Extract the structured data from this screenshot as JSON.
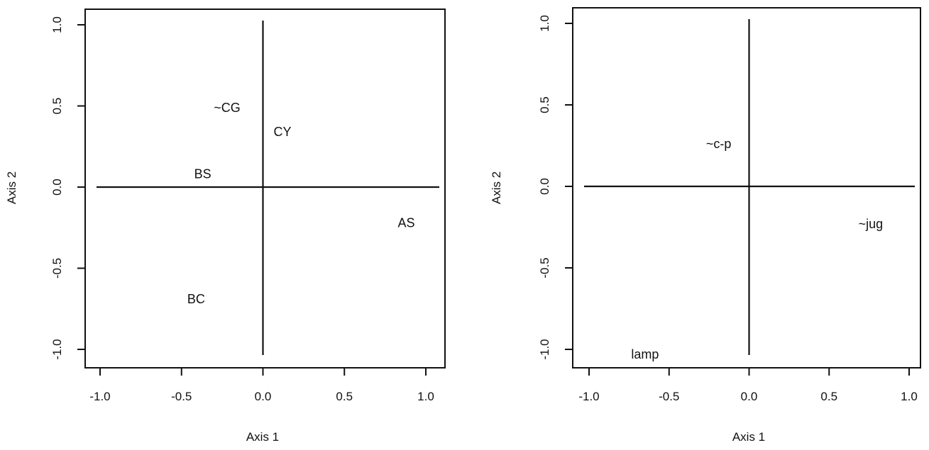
{
  "chart_data": [
    {
      "type": "scatter",
      "title": "",
      "xlabel": "Axis 1",
      "ylabel": "Axis 2",
      "xlim": [
        -1.05,
        1.05
      ],
      "ylim": [
        -1.1,
        1.1
      ],
      "xticks": [
        "-1.0",
        "-0.5",
        "0.0",
        "0.5",
        "1.0"
      ],
      "xtick_values": [
        -1.0,
        -0.5,
        0.0,
        0.5,
        1.0
      ],
      "yticks": [
        "-1.0",
        "-0.5",
        "0.0",
        "0.5",
        "1.0"
      ],
      "ytick_values": [
        -1.0,
        -0.5,
        0.0,
        0.5,
        1.0
      ],
      "reference_lines": {
        "horizontal": 0,
        "vertical": 0
      },
      "grid": false,
      "points": [
        {
          "label": "~CG",
          "x": -0.22,
          "y": 0.49
        },
        {
          "label": "CY",
          "x": 0.12,
          "y": 0.34
        },
        {
          "label": "BS",
          "x": -0.37,
          "y": 0.08
        },
        {
          "label": "AS",
          "x": 0.88,
          "y": -0.22
        },
        {
          "label": "BC",
          "x": -0.41,
          "y": -0.69
        }
      ]
    },
    {
      "type": "scatter",
      "title": "",
      "xlabel": "Axis 1",
      "ylabel": "Axis 2",
      "xlim": [
        -1.05,
        1.05
      ],
      "ylim": [
        -1.1,
        1.1
      ],
      "xticks": [
        "-1.0",
        "-0.5",
        "0.0",
        "0.5",
        "1.0"
      ],
      "xtick_values": [
        -1.0,
        -0.5,
        0.0,
        0.5,
        1.0
      ],
      "yticks": [
        "-1.0",
        "-0.5",
        "0.0",
        "0.5",
        "1.0"
      ],
      "ytick_values": [
        -1.0,
        -0.5,
        0.0,
        0.5,
        1.0
      ],
      "reference_lines": {
        "horizontal": 0,
        "vertical": 0
      },
      "grid": false,
      "points": [
        {
          "label": "~c-p",
          "x": -0.19,
          "y": 0.26
        },
        {
          "label": "~jug",
          "x": 0.76,
          "y": -0.23
        },
        {
          "label": "lamp",
          "x": -0.65,
          "y": -1.03
        }
      ]
    }
  ]
}
